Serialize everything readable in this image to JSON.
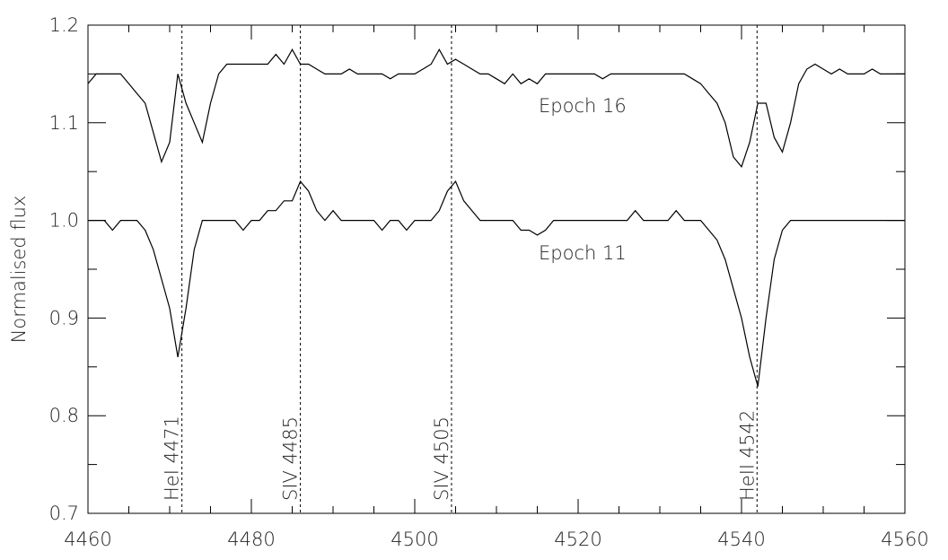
{
  "chart_data": {
    "type": "line",
    "ylabel": "Normalised flux",
    "x": [
      4460,
      4461,
      4462,
      4463,
      4464,
      4465,
      4466,
      4467,
      4468,
      4469,
      4470,
      4471,
      4472,
      4473,
      4474,
      4475,
      4476,
      4477,
      4478,
      4479,
      4480,
      4481,
      4482,
      4483,
      4484,
      4485,
      4486,
      4487,
      4488,
      4489,
      4490,
      4491,
      4492,
      4493,
      4494,
      4495,
      4496,
      4497,
      4498,
      4499,
      4500,
      4501,
      4502,
      4503,
      4504,
      4505,
      4506,
      4507,
      4508,
      4509,
      4510,
      4511,
      4512,
      4513,
      4514,
      4515,
      4516,
      4517,
      4518,
      4519,
      4520,
      4521,
      4522,
      4523,
      4524,
      4525,
      4526,
      4527,
      4528,
      4529,
      4530,
      4531,
      4532,
      4533,
      4534,
      4535,
      4536,
      4537,
      4538,
      4539,
      4540,
      4541,
      4542,
      4543,
      4544,
      4545,
      4546,
      4547,
      4548,
      4549,
      4550,
      4551,
      4552,
      4553,
      4554,
      4555,
      4556,
      4557,
      4558,
      4559,
      4560
    ],
    "series": [
      {
        "name": "Epoch 16",
        "color": "#000000",
        "values": [
          1.14,
          1.15,
          1.15,
          1.15,
          1.15,
          1.14,
          1.13,
          1.12,
          1.09,
          1.06,
          1.08,
          1.15,
          1.12,
          1.1,
          1.08,
          1.12,
          1.15,
          1.16,
          1.16,
          1.16,
          1.16,
          1.16,
          1.16,
          1.17,
          1.16,
          1.175,
          1.16,
          1.16,
          1.155,
          1.15,
          1.15,
          1.15,
          1.155,
          1.15,
          1.15,
          1.15,
          1.15,
          1.145,
          1.15,
          1.15,
          1.15,
          1.155,
          1.16,
          1.175,
          1.16,
          1.165,
          1.16,
          1.155,
          1.15,
          1.15,
          1.145,
          1.14,
          1.15,
          1.14,
          1.145,
          1.14,
          1.15,
          1.15,
          1.15,
          1.15,
          1.15,
          1.15,
          1.15,
          1.145,
          1.15,
          1.15,
          1.15,
          1.15,
          1.15,
          1.15,
          1.15,
          1.15,
          1.15,
          1.15,
          1.145,
          1.14,
          1.13,
          1.12,
          1.1,
          1.065,
          1.055,
          1.08,
          1.12,
          1.12,
          1.085,
          1.07,
          1.1,
          1.14,
          1.155,
          1.16,
          1.155,
          1.15,
          1.155,
          1.15,
          1.15,
          1.15,
          1.155,
          1.15,
          1.15,
          1.15,
          1.15
        ]
      },
      {
        "name": "Epoch 11",
        "color": "#000000",
        "values": [
          1.0,
          1.0,
          1.0,
          0.99,
          1.0,
          1.0,
          1.0,
          0.99,
          0.97,
          0.94,
          0.91,
          0.86,
          0.91,
          0.97,
          1.0,
          1.0,
          1.0,
          1.0,
          1.0,
          0.99,
          1.0,
          1.0,
          1.01,
          1.01,
          1.02,
          1.02,
          1.04,
          1.03,
          1.01,
          1.0,
          1.01,
          1.0,
          1.0,
          1.0,
          1.0,
          1.0,
          0.99,
          1.0,
          1.0,
          0.99,
          1.0,
          1.0,
          1.0,
          1.01,
          1.03,
          1.04,
          1.02,
          1.01,
          1.0,
          1.0,
          1.0,
          1.0,
          1.0,
          0.99,
          0.99,
          0.985,
          0.99,
          1.0,
          1.0,
          1.0,
          1.0,
          1.0,
          1.0,
          1.0,
          1.0,
          1.0,
          1.0,
          1.01,
          1.0,
          1.0,
          1.0,
          1.0,
          1.01,
          1.0,
          1.0,
          1.0,
          0.99,
          0.98,
          0.96,
          0.93,
          0.9,
          0.86,
          0.83,
          0.9,
          0.96,
          0.99,
          1.0,
          1.0,
          1.0,
          1.0,
          1.0,
          1.0,
          1.0,
          1.0,
          1.0,
          1.0,
          1.0,
          1.0,
          1.0,
          1.0,
          1.0
        ]
      }
    ],
    "lines": [
      {
        "x": 4471.5,
        "label": "HeI 4471"
      },
      {
        "x": 4486,
        "label": "SIV 4485"
      },
      {
        "x": 4504.5,
        "label": "SIV 4505"
      },
      {
        "x": 4541.9,
        "label": "HeII 4542"
      }
    ],
    "xlim": [
      4460,
      4560
    ],
    "xticks": [
      4460,
      4480,
      4500,
      4520,
      4540,
      4560
    ],
    "ylim": [
      0.7,
      1.2
    ],
    "yticks": [
      0.7,
      0.8,
      0.9,
      {
        "value": 1,
        "label": "1.0"
      },
      1.1,
      1.2
    ]
  }
}
